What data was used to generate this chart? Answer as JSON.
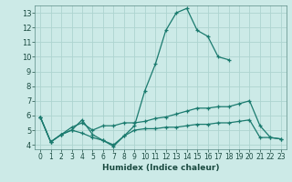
{
  "title": "",
  "xlabel": "Humidex (Indice chaleur)",
  "background_color": "#cceae7",
  "grid_color": "#add4d0",
  "line_color": "#1a7a6e",
  "xlim": [
    -0.5,
    23.5
  ],
  "ylim": [
    3.7,
    13.5
  ],
  "xticks": [
    0,
    1,
    2,
    3,
    4,
    5,
    6,
    7,
    8,
    9,
    10,
    11,
    12,
    13,
    14,
    15,
    16,
    17,
    18,
    19,
    20,
    21,
    22,
    23
  ],
  "yticks": [
    4,
    5,
    6,
    7,
    8,
    9,
    10,
    11,
    12,
    13
  ],
  "series": [
    {
      "x": [
        0,
        1,
        2,
        3,
        4,
        5,
        6,
        7,
        8,
        9,
        10,
        11,
        12,
        13,
        14,
        15,
        16,
        17,
        18
      ],
      "y": [
        5.9,
        4.2,
        4.7,
        5.0,
        5.7,
        4.7,
        4.3,
        3.9,
        4.6,
        5.3,
        7.7,
        9.5,
        11.8,
        13.0,
        13.3,
        11.8,
        11.4,
        10.0,
        9.8
      ]
    },
    {
      "x": [
        0,
        1,
        2,
        3,
        4,
        5,
        6,
        7,
        8,
        9,
        10,
        11,
        12,
        13,
        14,
        15,
        16,
        17,
        18,
        19,
        20,
        21,
        22,
        23
      ],
      "y": [
        5.9,
        4.2,
        4.7,
        5.2,
        5.5,
        5.0,
        5.3,
        5.3,
        5.5,
        5.5,
        5.6,
        5.8,
        5.9,
        6.1,
        6.3,
        6.5,
        6.5,
        6.6,
        6.6,
        6.8,
        7.0,
        5.3,
        4.5,
        4.4
      ]
    },
    {
      "x": [
        0,
        1,
        2,
        3,
        4,
        5,
        6,
        7,
        8,
        9,
        10,
        11,
        12,
        13,
        14,
        15,
        16,
        17,
        18,
        19,
        20,
        21,
        22,
        23
      ],
      "y": [
        5.9,
        4.2,
        4.7,
        5.0,
        4.8,
        4.5,
        4.3,
        4.0,
        4.6,
        5.0,
        5.1,
        5.1,
        5.2,
        5.2,
        5.3,
        5.4,
        5.4,
        5.5,
        5.5,
        5.6,
        5.7,
        4.5,
        4.5,
        4.4
      ]
    }
  ]
}
